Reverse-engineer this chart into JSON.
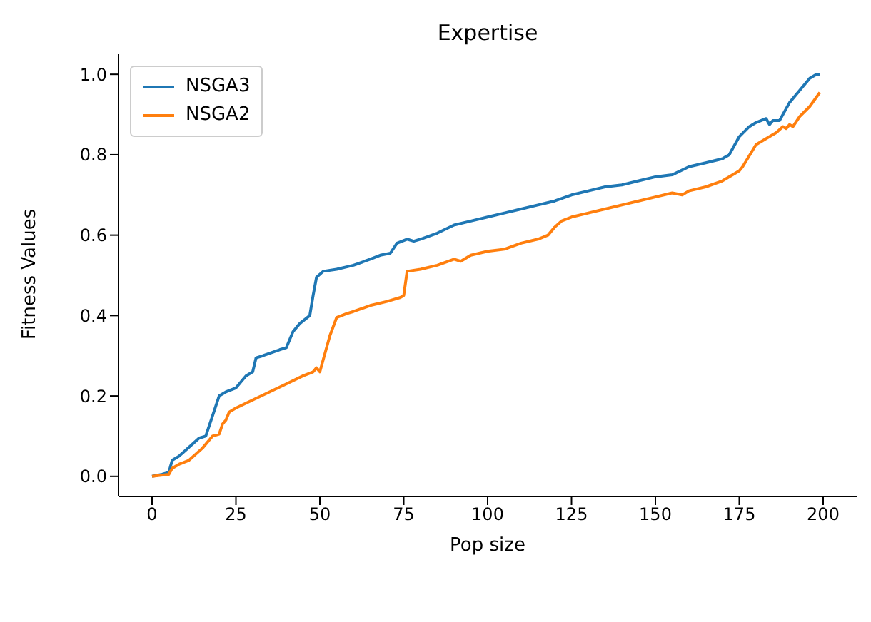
{
  "chart_data": {
    "type": "line",
    "title": "Expertise",
    "xlabel": "Pop size",
    "ylabel": "Fitness Values",
    "xlim": [
      -10,
      210
    ],
    "ylim": [
      -0.05,
      1.05
    ],
    "xticks": [
      0,
      25,
      50,
      75,
      100,
      125,
      150,
      175,
      200
    ],
    "yticks": [
      {
        "value": 0,
        "label": "0.0"
      },
      {
        "value": 0.2,
        "label": "0.2"
      },
      {
        "value": 0.4,
        "label": "0.4"
      },
      {
        "value": 0.6,
        "label": "0.6"
      },
      {
        "value": 0.8,
        "label": "0.8"
      },
      {
        "value": 1,
        "label": "1.0"
      }
    ],
    "grid": false,
    "legend": "top left",
    "marker": "none",
    "line_style": "solid",
    "series": [
      {
        "name": "NSGA3",
        "color": "#1f77b4",
        "x": [
          0,
          3,
          5,
          6,
          8,
          10,
          12,
          14,
          16,
          18,
          20,
          22,
          25,
          27,
          28,
          30,
          31,
          33,
          38,
          40,
          42,
          44,
          47,
          48,
          49,
          51,
          55,
          60,
          65,
          68,
          71,
          73,
          76,
          78,
          80,
          85,
          90,
          95,
          100,
          105,
          110,
          115,
          120,
          125,
          130,
          135,
          140,
          145,
          150,
          155,
          160,
          165,
          170,
          172,
          175,
          178,
          180,
          183,
          184,
          185,
          187,
          190,
          193,
          196,
          198,
          199
        ],
        "values": [
          0,
          0.005,
          0.01,
          0.04,
          0.05,
          0.065,
          0.08,
          0.095,
          0.1,
          0.15,
          0.2,
          0.21,
          0.22,
          0.24,
          0.25,
          0.26,
          0.295,
          0.3,
          0.315,
          0.32,
          0.36,
          0.38,
          0.4,
          0.45,
          0.495,
          0.51,
          0.515,
          0.525,
          0.54,
          0.55,
          0.555,
          0.58,
          0.59,
          0.585,
          0.59,
          0.605,
          0.625,
          0.635,
          0.645,
          0.655,
          0.665,
          0.675,
          0.685,
          0.7,
          0.71,
          0.72,
          0.725,
          0.735,
          0.745,
          0.75,
          0.77,
          0.78,
          0.79,
          0.8,
          0.845,
          0.87,
          0.88,
          0.89,
          0.875,
          0.885,
          0.885,
          0.93,
          0.96,
          0.99,
          1.0,
          1.0
        ]
      },
      {
        "name": "NSGA2",
        "color": "#ff7f0e",
        "x": [
          0,
          5,
          6,
          8,
          11,
          15,
          18,
          20,
          21,
          22,
          23,
          25,
          30,
          35,
          40,
          45,
          48,
          49,
          50,
          53,
          55,
          58,
          60,
          65,
          70,
          74,
          75,
          76,
          80,
          85,
          90,
          92,
          95,
          100,
          105,
          110,
          115,
          118,
          120,
          122,
          125,
          130,
          135,
          140,
          145,
          150,
          155,
          158,
          160,
          165,
          170,
          175,
          176,
          180,
          184,
          186,
          188,
          189,
          190,
          191,
          193,
          196,
          199
        ],
        "values": [
          0,
          0.005,
          0.02,
          0.03,
          0.04,
          0.07,
          0.1,
          0.105,
          0.13,
          0.14,
          0.16,
          0.17,
          0.19,
          0.21,
          0.23,
          0.25,
          0.26,
          0.27,
          0.26,
          0.35,
          0.395,
          0.405,
          0.41,
          0.425,
          0.435,
          0.445,
          0.45,
          0.51,
          0.515,
          0.525,
          0.54,
          0.535,
          0.55,
          0.56,
          0.565,
          0.58,
          0.59,
          0.6,
          0.62,
          0.635,
          0.645,
          0.655,
          0.665,
          0.675,
          0.685,
          0.695,
          0.705,
          0.7,
          0.71,
          0.72,
          0.735,
          0.76,
          0.77,
          0.825,
          0.845,
          0.855,
          0.87,
          0.865,
          0.875,
          0.87,
          0.895,
          0.92,
          0.955
        ]
      }
    ]
  }
}
